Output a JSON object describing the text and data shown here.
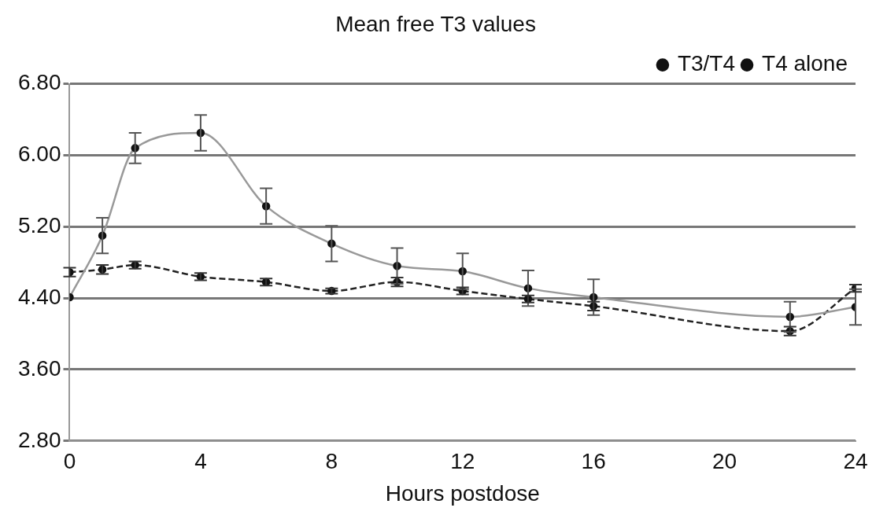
{
  "chart_data": {
    "type": "line",
    "title": "Mean free T3 values",
    "xlabel": "Hours postdose",
    "x": [
      0,
      1,
      2,
      4,
      6,
      8,
      10,
      12,
      14,
      16,
      22,
      24
    ],
    "series": [
      {
        "name": "T3/T4",
        "color": "#999999",
        "line_style": "solid",
        "values": [
          4.41,
          5.1,
          6.08,
          6.25,
          5.43,
          5.01,
          4.76,
          4.7,
          4.51,
          4.41,
          4.19,
          4.3
        ],
        "errors": [
          null,
          0.2,
          0.17,
          0.2,
          0.2,
          0.2,
          0.2,
          0.2,
          0.2,
          0.2,
          0.17,
          0.2
        ]
      },
      {
        "name": "T4 alone",
        "color": "#222222",
        "line_style": "dashed",
        "values": [
          4.69,
          4.72,
          4.77,
          4.64,
          4.58,
          4.48,
          4.58,
          4.48,
          4.39,
          4.31,
          4.03,
          4.51
        ],
        "errors": [
          0.05,
          0.05,
          0.04,
          0.04,
          0.04,
          0.03,
          0.05,
          0.04,
          0.04,
          0.05,
          0.05,
          0.04
        ]
      }
    ],
    "xlim": [
      0,
      24
    ],
    "xticks": [
      0,
      4,
      8,
      12,
      16,
      20,
      24
    ],
    "ylim": [
      2.8,
      6.8
    ],
    "yticks": [
      {
        "value": 2.8,
        "label": "2.80"
      },
      {
        "value": 3.6,
        "label": "3.60"
      },
      {
        "value": 4.4,
        "label": "4.40"
      },
      {
        "value": 5.2,
        "label": "5.20"
      },
      {
        "value": 6.0,
        "label": "6.00"
      },
      {
        "value": 6.8,
        "label": "6.80"
      }
    ],
    "grid": "y",
    "legend": "top right",
    "marker": "circle"
  }
}
